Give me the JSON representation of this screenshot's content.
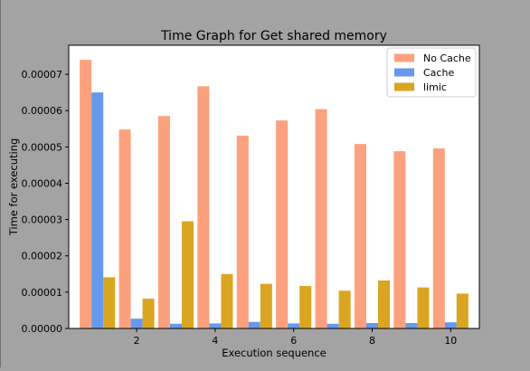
{
  "chart_data": {
    "type": "bar",
    "title": "Time Graph for Get shared memory",
    "xlabel": "Execution sequence",
    "ylabel": "Time for executing",
    "x": [
      1,
      2,
      3,
      4,
      5,
      6,
      7,
      8,
      9,
      10
    ],
    "xticks": [
      "2",
      "4",
      "6",
      "8",
      "10"
    ],
    "xtick_values": [
      2,
      4,
      6,
      8,
      10
    ],
    "xlim": [
      0.27,
      10.73
    ],
    "ylim": [
      0,
      7.8e-05
    ],
    "yticks": [
      "0.00000",
      "0.00001",
      "0.00002",
      "0.00003",
      "0.00004",
      "0.00005",
      "0.00006",
      "0.00007"
    ],
    "ytick_values": [
      0,
      1e-05,
      2e-05,
      3e-05,
      4e-05,
      5e-05,
      6e-05,
      7e-05
    ],
    "grid": false,
    "legend_position": "top-right",
    "series": [
      {
        "name": "No Cache",
        "color": "#fca17d",
        "values": [
          7.4e-05,
          5.48e-05,
          5.85e-05,
          6.67e-05,
          5.31e-05,
          5.73e-05,
          6.04e-05,
          5.08e-05,
          4.88e-05,
          4.96e-05
        ]
      },
      {
        "name": "Cache",
        "color": "#6699ee",
        "values": [
          6.5e-05,
          2.7e-06,
          1.3e-06,
          1.4e-06,
          1.8e-06,
          1.4e-06,
          1.3e-06,
          1.5e-06,
          1.5e-06,
          1.7e-06
        ]
      },
      {
        "name": "limic",
        "color": "#daa520",
        "values": [
          1.41e-05,
          8.2e-06,
          2.95e-05,
          1.5e-05,
          1.23e-05,
          1.17e-05,
          1.04e-05,
          1.32e-05,
          1.13e-05,
          9.6e-06
        ]
      }
    ]
  }
}
